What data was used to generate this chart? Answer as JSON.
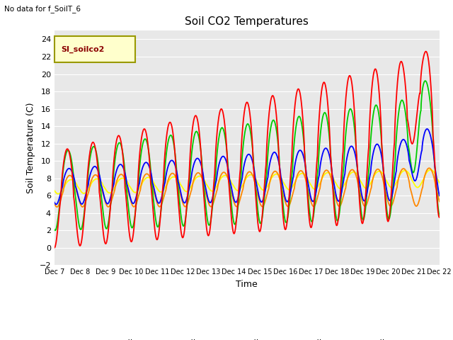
{
  "title": "Soil CO2 Temperatures",
  "ylabel": "Soil Temperature (C)",
  "xlabel": "Time",
  "no_data_text": "No data for f_SoilT_6",
  "legend_label_text": "SI_soilco2",
  "ylim": [
    -2,
    25
  ],
  "yticks": [
    -2,
    0,
    2,
    4,
    6,
    8,
    10,
    12,
    14,
    16,
    18,
    20,
    22,
    24
  ],
  "xtick_labels": [
    "Dec 7",
    "Dec 8",
    "Dec 9",
    "Dec 10",
    "Dec 11",
    "Dec 12",
    "Dec 13",
    "Dec 14",
    "Dec 15",
    "Dec 16",
    "Dec 17",
    "Dec 18",
    "Dec 19",
    "Dec 20",
    "Dec 21",
    "Dec 22"
  ],
  "series_colors": {
    "SoilT_1": "#ff0000",
    "SoilT_2": "#ff8800",
    "SoilT_3": "#ffff00",
    "SoilT_4": "#00cc00",
    "SoilT_5": "#0000ff"
  },
  "background_color": "#e8e8e8",
  "grid_color": "#ffffff",
  "n_points": 1500
}
